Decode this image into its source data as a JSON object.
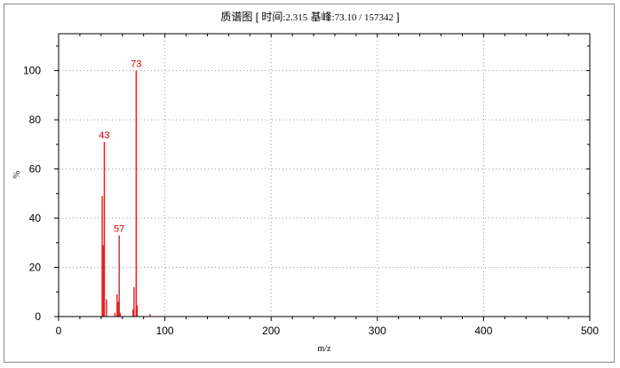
{
  "window": {
    "title_main": "质谱图",
    "title_open": " [ ",
    "time_label": "时间",
    "time_value": ":2.315",
    "base_label": " 基峰",
    "base_value": ":73.10 / 157342",
    "title_close": " ]"
  },
  "colors": {
    "peak": "#e02020",
    "peak_label": "#d40000",
    "grid": "#9a9a9a",
    "axis": "#000000"
  },
  "chart_data": {
    "type": "bar",
    "xlabel": "m/z",
    "ylabel": "%",
    "xlim": [
      0,
      500
    ],
    "ylim": [
      0,
      115
    ],
    "x_ticks": [
      0,
      100,
      200,
      300,
      400,
      500
    ],
    "y_ticks": [
      0,
      20,
      40,
      60,
      80,
      100
    ],
    "grid": true,
    "peaks": [
      {
        "mz": 41,
        "intensity": 49
      },
      {
        "mz": 42,
        "intensity": 29
      },
      {
        "mz": 43,
        "intensity": 71,
        "label": "43"
      },
      {
        "mz": 45,
        "intensity": 7
      },
      {
        "mz": 53,
        "intensity": 1.5
      },
      {
        "mz": 55,
        "intensity": 9
      },
      {
        "mz": 56,
        "intensity": 6
      },
      {
        "mz": 57,
        "intensity": 33,
        "label": "57"
      },
      {
        "mz": 58,
        "intensity": 1.5
      },
      {
        "mz": 70,
        "intensity": 3
      },
      {
        "mz": 71,
        "intensity": 12
      },
      {
        "mz": 73,
        "intensity": 100,
        "label": "73"
      },
      {
        "mz": 74,
        "intensity": 4.5
      },
      {
        "mz": 86,
        "intensity": 1
      }
    ]
  }
}
